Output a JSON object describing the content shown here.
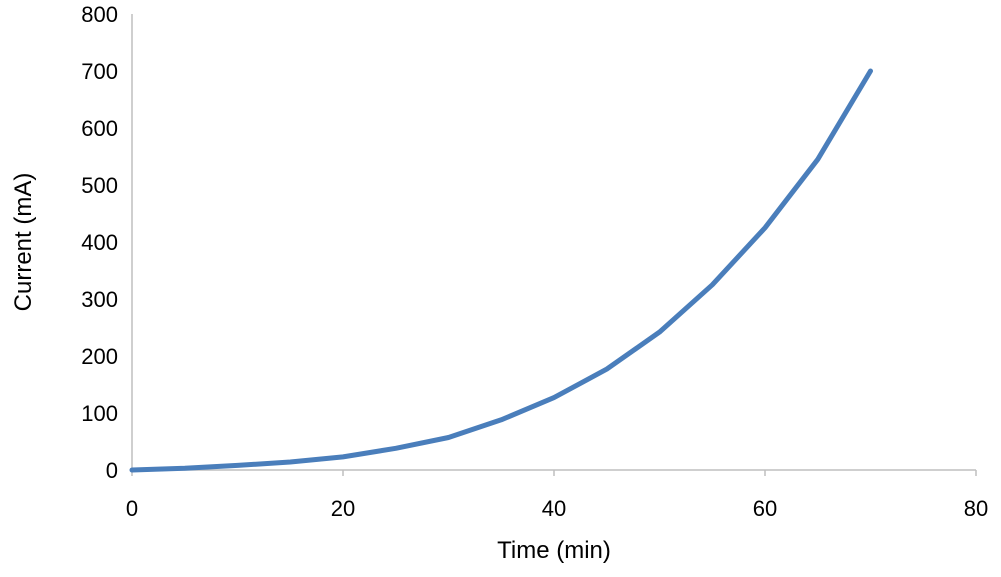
{
  "chart_data": {
    "type": "line",
    "title": "",
    "xlabel": "Time (min)",
    "ylabel": "Current (mA)",
    "xlim": [
      0,
      80
    ],
    "ylim": [
      0,
      800
    ],
    "x_ticks": [
      0,
      20,
      40,
      60,
      80
    ],
    "y_ticks": [
      0,
      100,
      200,
      300,
      400,
      500,
      600,
      700,
      800
    ],
    "x_tick_labels": [
      "0",
      "20",
      "40",
      "60",
      "80"
    ],
    "y_tick_labels": [
      "0",
      "100",
      "200",
      "300",
      "400",
      "500",
      "600",
      "700",
      "800"
    ],
    "grid": false,
    "legend": "none",
    "series": [
      {
        "color": "#4a7ebb",
        "x": [
          0,
          5,
          10,
          15,
          20,
          25,
          30,
          35,
          40,
          45,
          50,
          55,
          60,
          65,
          70
        ],
        "y": [
          0,
          3,
          8,
          14,
          23,
          38,
          57,
          88,
          127,
          177,
          242,
          325,
          425,
          545,
          700
        ]
      }
    ]
  }
}
